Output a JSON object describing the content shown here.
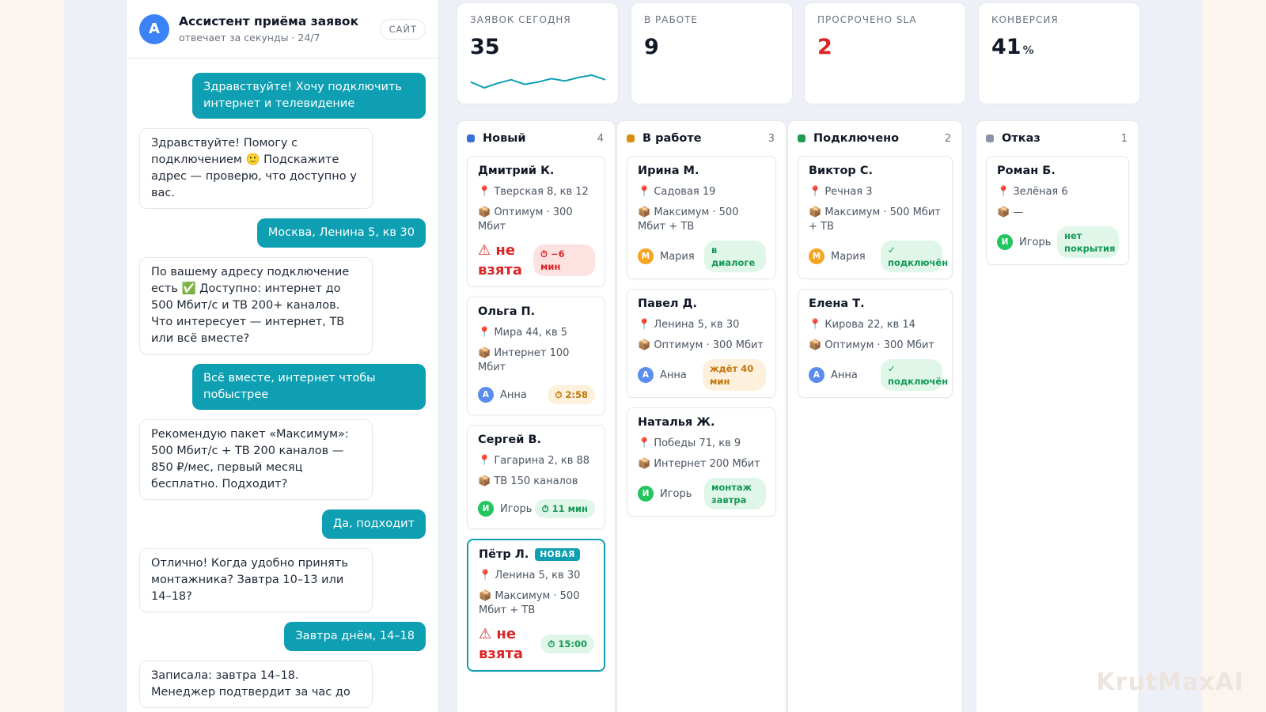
{
  "chat": {
    "bot_avatar": "А",
    "bot_name": "Ассистент приёма заявок",
    "bot_status": "отвечает за секунды · 24/7",
    "channel": "САЙТ",
    "messages": [
      {
        "from": "user",
        "text": "Здравствуйте! Хочу подключить интернет и телевидение"
      },
      {
        "from": "bot",
        "text": "Здравствуйте! Помогу с подключением 🙂 Подскажите адрес — проверю, что доступно у вас."
      },
      {
        "from": "user",
        "text": "Москва, Ленина 5, кв 30"
      },
      {
        "from": "bot",
        "text": "По вашему адресу подключение есть ✅ Доступно: интернет до 500 Мбит/с и ТВ 200+ каналов. Что интересует — интернет, ТВ или всё вместе?"
      },
      {
        "from": "user",
        "text": "Всё вместе, интернет чтобы побыстрее"
      },
      {
        "from": "bot",
        "text": "Рекомендую пакет «Максимум»: 500 Мбит/с + ТВ 200 каналов — 850 ₽/мес, первый месяц бесплатно. Подходит?"
      },
      {
        "from": "user",
        "text": "Да, подходит"
      },
      {
        "from": "bot",
        "text": "Отлично! Когда удобно принять монтажника? Завтра 10–13 или 14–18?"
      },
      {
        "from": "user",
        "text": "Завтра днём, 14–18"
      },
      {
        "from": "bot",
        "text": "Записала: завтра 14–18. Менеджер подтвердит за час до"
      }
    ]
  },
  "kpis": [
    {
      "label": "ЗАЯВОК СЕГОДНЯ",
      "value": "35",
      "unit": "",
      "color": "#111827",
      "sparkline": [
        3,
        4,
        3.2,
        2.6,
        3.4,
        3,
        2.4,
        2.8,
        2.2,
        1.8,
        2.6
      ]
    },
    {
      "label": "В РАБОТЕ",
      "value": "9",
      "unit": "",
      "color": "#111827"
    },
    {
      "label": "ПРОСРОЧЕНО SLA",
      "value": "2",
      "unit": "",
      "color": "#dc2626"
    },
    {
      "label": "КОНВЕРСИЯ",
      "value": "41",
      "unit": "%",
      "color": "#111827"
    }
  ],
  "columns": [
    {
      "title": "Новый",
      "count": "4",
      "color": "#3b6fd8",
      "cards": [
        {
          "name": "Дмитрий К.",
          "address": "📍 Тверская 8, кв 12",
          "package": "📦 Оптимум · 300 Мбит",
          "warn": "⚠ не взята",
          "chip": "⏱ −6 мин",
          "chip_style": "red"
        },
        {
          "name": "Ольга П.",
          "address": "📍 Мира 44, кв 5",
          "package": "📦 Интернет 100 Мбит",
          "manager": "Анна",
          "manager_initial": "А",
          "manager_color": "#5b8def",
          "chip": "⏱ 2:58",
          "chip_style": "amber"
        },
        {
          "name": "Сергей В.",
          "address": "📍 Гагарина 2, кв 88",
          "package": "📦 ТВ 150 каналов",
          "manager": "Игорь",
          "manager_initial": "И",
          "manager_color": "#22c55e",
          "chip": "⏱ 11 мин",
          "chip_style": "green"
        },
        {
          "name": "Пётр Л.",
          "badge": "НОВАЯ",
          "address": "📍 Ленина 5, кв 30",
          "package": "📦 Максимум · 500 Мбит + ТВ",
          "warn": "⚠ не взята",
          "chip": "⏱ 15:00",
          "chip_style": "green",
          "highlight": true
        }
      ]
    },
    {
      "title": "В работе",
      "count": "3",
      "color": "#d98e0f",
      "cards": [
        {
          "name": "Ирина М.",
          "address": "📍 Садовая 19",
          "package": "📦 Максимум · 500 Мбит + ТВ",
          "manager": "Мария",
          "manager_initial": "М",
          "manager_color": "#f5a524",
          "chip": "в диалоге",
          "chip_style": "green"
        },
        {
          "name": "Павел Д.",
          "address": "📍 Ленина 5, кв 30",
          "package": "📦 Оптимум · 300 Мбит",
          "manager": "Анна",
          "manager_initial": "А",
          "manager_color": "#5b8def",
          "chip": "ждёт 40 мин",
          "chip_style": "amberwide"
        },
        {
          "name": "Наталья Ж.",
          "address": "📍 Победы 71, кв 9",
          "package": "📦 Интернет 200 Мбит",
          "manager": "Игорь",
          "manager_initial": "И",
          "manager_color": "#22c55e",
          "chip": "монтаж завтра",
          "chip_style": "green"
        }
      ]
    },
    {
      "title": "Подключено",
      "count": "2",
      "color": "#1f9d55",
      "cards": [
        {
          "name": "Виктор С.",
          "address": "📍 Речная 3",
          "package": "📦 Максимум · 500 Мбит + ТВ",
          "manager": "Мария",
          "manager_initial": "М",
          "manager_color": "#f5a524",
          "chip": "✓ подключён",
          "chip_style": "green"
        },
        {
          "name": "Елена Т.",
          "address": "📍 Кирова 22, кв 14",
          "package": "📦 Оптимум · 300 Мбит",
          "manager": "Анна",
          "manager_initial": "А",
          "manager_color": "#5b8def",
          "chip": "✓ подключён",
          "chip_style": "green"
        }
      ]
    },
    {
      "title": "Отказ",
      "count": "1",
      "color": "#8b93a7",
      "cards": [
        {
          "name": "Роман Б.",
          "address": "📍 Зелёная 6",
          "package": "📦 —",
          "manager": "Игорь",
          "manager_initial": "И",
          "manager_color": "#22c55e",
          "chip": "нет покрытия",
          "chip_style": "green"
        }
      ]
    }
  ],
  "watermark": "KrutMaxAI"
}
